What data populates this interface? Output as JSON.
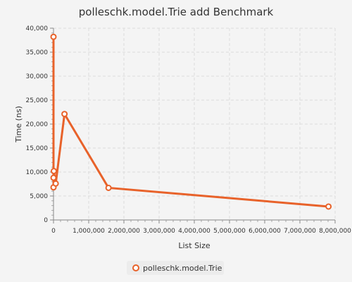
{
  "chart_data": {
    "type": "line",
    "title": "polleschk.model.Trie add Benchmark",
    "xlabel": "List Size",
    "ylabel": "Time (ns)",
    "xlim": [
      0,
      8000000
    ],
    "ylim": [
      0,
      40000
    ],
    "xticks": [
      "0",
      "1,000,000",
      "2,000,000",
      "3,000,000",
      "4,000,000",
      "5,000,000",
      "6,000,000",
      "7,000,000",
      "8,000,000"
    ],
    "yticks": [
      "0",
      "5,000",
      "10,000",
      "15,000",
      "20,000",
      "25,000",
      "30,000",
      "35,000",
      "40,000"
    ],
    "grid": true,
    "legend_position": "bottom",
    "series": [
      {
        "name": "polleschk.model.Trie",
        "color": "#e8622a",
        "points": [
          {
            "x": 10,
            "y": 38200
          },
          {
            "x": 100,
            "y": 6800
          },
          {
            "x": 1000,
            "y": 8800
          },
          {
            "x": 10000,
            "y": 10200
          },
          {
            "x": 62500,
            "y": 7600
          },
          {
            "x": 312500,
            "y": 22100
          },
          {
            "x": 1562500,
            "y": 6700
          },
          {
            "x": 7812500,
            "y": 2800
          }
        ]
      }
    ]
  }
}
